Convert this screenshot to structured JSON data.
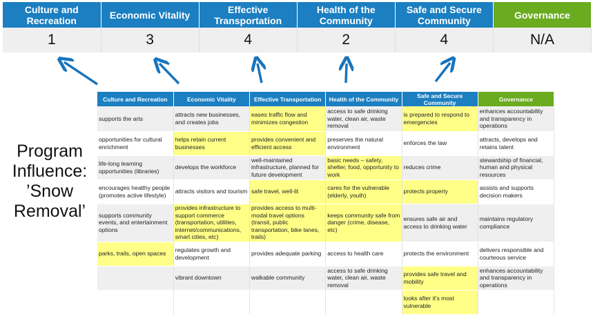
{
  "categories": [
    "Culture and Recreation",
    "Economic Vitality",
    "Effective Transportation",
    "Health of the Community",
    "Safe and Secure Community",
    "Governance"
  ],
  "scores": [
    "1",
    "3",
    "4",
    "2",
    "4",
    "N/A"
  ],
  "program_label": "Program Influence: ’Snow Removal’",
  "colors": {
    "header_blue": "#1b7fc1",
    "governance_green": "#6aab1f",
    "highlight_yellow": "#ffff88",
    "arrow_blue": "#1874bd"
  },
  "matrix": {
    "headers": [
      "Culture and Recreation",
      "Economic Vitality",
      "Effective Transportation",
      "Health of the Community",
      "Safe and Secure Community",
      "Governance"
    ],
    "rows": [
      [
        {
          "t": "supports the arts"
        },
        {
          "t": "attracts new businesses, and creates jobs"
        },
        {
          "t": "eases traffic flow and minimizes congestion",
          "h": true
        },
        {
          "t": "access to safe drinking water, clean air, waste removal"
        },
        {
          "t": "is prepared to respond to emergencies",
          "h": true
        },
        {
          "t": "enhances accountability and transparency in operations"
        }
      ],
      [
        {
          "t": "opportunities for cultural enrichment"
        },
        {
          "t": "helps retain current businesses",
          "h": true
        },
        {
          "t": "provides convenient and efficient access",
          "h": true
        },
        {
          "t": "preserves the natural environment"
        },
        {
          "t": "enforces the law"
        },
        {
          "t": "attracts, develops and retains talent"
        }
      ],
      [
        {
          "t": "life-long learning opportunities (libraries)"
        },
        {
          "t": "develops the workforce"
        },
        {
          "t": "well-maintained infrastructure, planned for future development"
        },
        {
          "t": "basic needs – safety, shelter, food, opportunity to work",
          "h": true
        },
        {
          "t": "reduces crime"
        },
        {
          "t": "stewardship of financial, human and physical resources"
        }
      ],
      [
        {
          "t": "encourages healthy people (promotes active lifestyle)"
        },
        {
          "t": "attracts visitors and tourism"
        },
        {
          "t": "safe travel, well-lit",
          "h": true
        },
        {
          "t": "cares for the vulnerable (elderly, youth)",
          "h": true
        },
        {
          "t": "protects property",
          "h": true
        },
        {
          "t": "assists and supports decision makers"
        }
      ],
      [
        {
          "t": "supports community events, and entertainment options"
        },
        {
          "t": "provides infrastructure to support commerce (transportation, utilities, internet/communications, smart cities, etc)",
          "h": true
        },
        {
          "t": "provides access to multi-modal travel options (transit, public transportation, bike lanes, trails)",
          "h": true
        },
        {
          "t": "keeps community safe from danger (crime, disease, etc)",
          "h": true
        },
        {
          "t": "ensures safe air and access to drinking water"
        },
        {
          "t": "maintains regulatory compliance"
        }
      ],
      [
        {
          "t": "parks, trails, open spaces",
          "h": true
        },
        {
          "t": "regulates growth and development"
        },
        {
          "t": "provides adequate parking"
        },
        {
          "t": "access to health care"
        },
        {
          "t": "protects the environment"
        },
        {
          "t": "delivers responsible and courteous service"
        }
      ],
      [
        {
          "t": ""
        },
        {
          "t": "vibrant downtown"
        },
        {
          "t": "walkable community"
        },
        {
          "t": "access to safe drinking water, clean air, waste removal"
        },
        {
          "t": "provides safe travel and mobility",
          "h": true
        },
        {
          "t": "enhances accountability and transparency in operations"
        }
      ],
      [
        {
          "t": ""
        },
        {
          "t": ""
        },
        {
          "t": ""
        },
        {
          "t": ""
        },
        {
          "t": "looks after it's most vulnerable",
          "h": true
        },
        {
          "t": ""
        }
      ]
    ]
  }
}
